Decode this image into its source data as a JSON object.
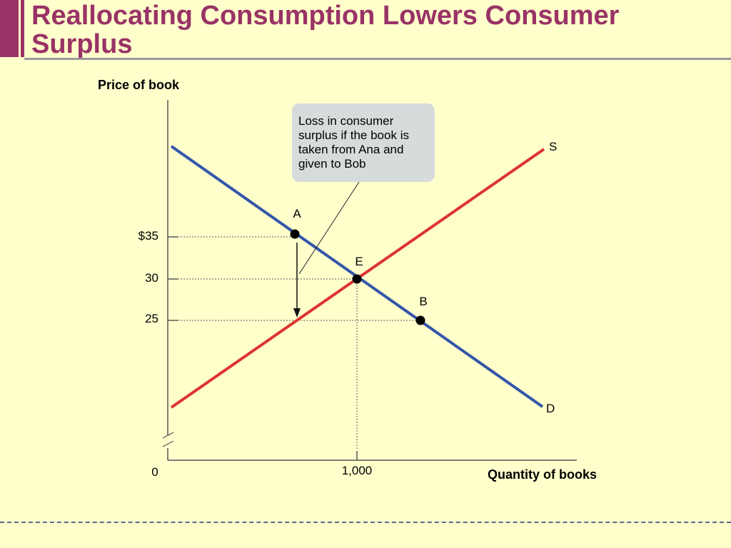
{
  "slide": {
    "title": "Reallocating Consumption Lowers Consumer Surplus"
  },
  "chart_data": {
    "type": "line",
    "ylabel": "Price of book",
    "xlabel": "Quantity of books",
    "y_ticks": [
      "$35",
      "30",
      "25"
    ],
    "x_ticks": [
      "0",
      "1,000"
    ],
    "series": [
      {
        "name": "S",
        "color": "#dd3333"
      },
      {
        "name": "D",
        "color": "#3355aa"
      }
    ],
    "points": [
      {
        "label": "A",
        "price": 35,
        "curve": "D"
      },
      {
        "label": "E",
        "price": 30,
        "quantity": 1000
      },
      {
        "label": "B",
        "price": 25,
        "curve": "D"
      }
    ],
    "equilibrium": {
      "price": 30,
      "quantity": 1000
    },
    "annotation": "Loss in consumer surplus if the book is taken from Ana and given to Bob"
  }
}
